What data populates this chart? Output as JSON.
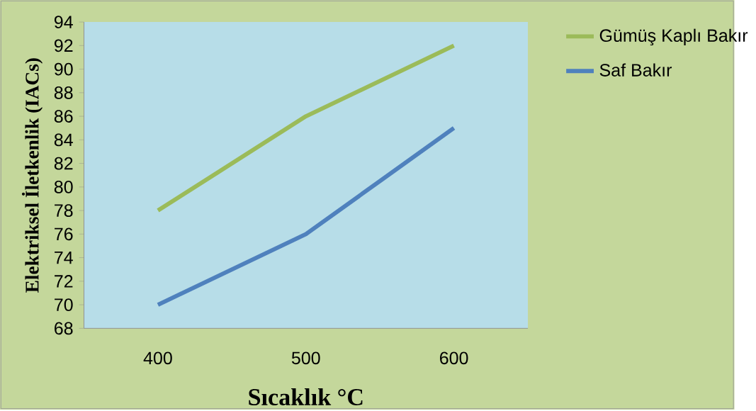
{
  "chart_data": {
    "type": "line",
    "categories": [
      "400",
      "500",
      "600"
    ],
    "series": [
      {
        "name": "Gümüş Kaplı Bakır",
        "color": "#9bbb59",
        "values": [
          78,
          86,
          92
        ]
      },
      {
        "name": "Saf Bakır",
        "color": "#4f81bd",
        "values": [
          70,
          76,
          85
        ]
      }
    ],
    "xlabel": "Sıcaklık °C",
    "ylabel": "Elektriksel İletkenlik (IACs)",
    "ylim": [
      68,
      94
    ],
    "yticks": [
      68,
      70,
      72,
      74,
      76,
      78,
      80,
      82,
      84,
      86,
      88,
      90,
      92,
      94
    ],
    "legend": "right",
    "marker": "none",
    "line_style": "solid"
  }
}
